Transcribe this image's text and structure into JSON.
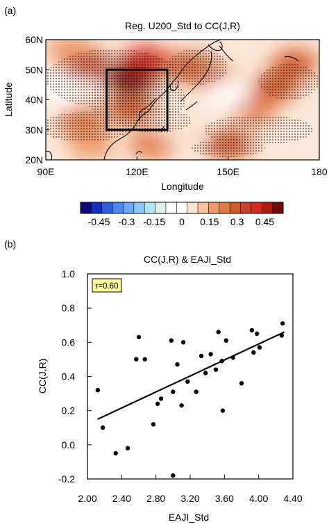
{
  "chart_data": [
    {
      "type": "heatmap",
      "panel_label": "(a)",
      "title": "Reg. U200_Std to CC(J,R)",
      "xlabel": "Longitude",
      "ylabel": "Latitude",
      "x_ticks": [
        "90E",
        "120E",
        "150E",
        "180"
      ],
      "x_tick_values": [
        90,
        120,
        150,
        180
      ],
      "y_ticks": [
        "20N",
        "30N",
        "40N",
        "50N",
        "60N"
      ],
      "y_tick_values": [
        20,
        30,
        40,
        50,
        60
      ],
      "xlim": [
        90,
        180
      ],
      "ylim": [
        20,
        60
      ],
      "box": {
        "lon": [
          110,
          130
        ],
        "lat": [
          30,
          50
        ]
      },
      "colorbar": {
        "tick_labels": [
          "-0.45",
          "-0.3",
          "-0.15",
          "0",
          "0.15",
          "0.3",
          "0.45"
        ],
        "tick_values": [
          -0.45,
          -0.3,
          -0.15,
          0,
          0.15,
          0.3,
          0.45
        ],
        "range": [
          -0.55,
          0.55
        ],
        "colors": [
          "#0a0a7a",
          "#1030c0",
          "#2f5fe0",
          "#4a86f0",
          "#6ea8f5",
          "#8ccaf5",
          "#b4e4f0",
          "#dff2ea",
          "#ffffff",
          "#ffffff",
          "#fbe3cf",
          "#f7c3a0",
          "#ef9a6a",
          "#e27a46",
          "#d45a2c",
          "#c8402a",
          "#d62a22",
          "#b01812",
          "#6e0a0a"
        ]
      },
      "features": [
        {
          "lon": 118,
          "lat": 47,
          "value": 0.5
        },
        {
          "lon": 123,
          "lat": 53,
          "value": 0.4
        },
        {
          "lon": 103,
          "lat": 52,
          "value": 0.32
        },
        {
          "lon": 137,
          "lat": 51,
          "value": 0.3
        },
        {
          "lon": 118,
          "lat": 37,
          "value": 0.28
        },
        {
          "lon": 145,
          "lat": 47,
          "value": 0.22
        },
        {
          "lon": 165,
          "lat": 44,
          "value": 0.3
        },
        {
          "lon": 158,
          "lat": 37,
          "value": 0.25
        },
        {
          "lon": 172,
          "lat": 52,
          "value": 0.28
        },
        {
          "lon": 150,
          "lat": 25,
          "value": 0.28
        },
        {
          "lon": 125,
          "lat": 25,
          "value": 0.25
        },
        {
          "lon": 102,
          "lat": 33,
          "value": 0.25
        },
        {
          "lon": 105,
          "lat": 25,
          "value": 0.2
        },
        {
          "lon": 98,
          "lat": 57,
          "value": 0.15
        },
        {
          "lon": 150,
          "lat": 42,
          "value": -0.08
        },
        {
          "lon": 95,
          "lat": 43,
          "value": -0.05
        },
        {
          "lon": 135,
          "lat": 30,
          "value": 0.05
        }
      ]
    },
    {
      "type": "scatter",
      "panel_label": "(b)",
      "title": "CC(J,R) & EAJI_Std",
      "xlabel": "EAJI_Std",
      "ylabel": "CC(J,R)",
      "xlim": [
        2.0,
        4.4
      ],
      "ylim": [
        -0.2,
        1.0
      ],
      "x_ticks": [
        "2.00",
        "2.40",
        "2.80",
        "3.20",
        "3.60",
        "4.00",
        "4.40"
      ],
      "x_tick_values": [
        2.0,
        2.4,
        2.8,
        3.2,
        3.6,
        4.0,
        4.4
      ],
      "y_ticks": [
        "-0.2",
        "0.0",
        "0.2",
        "0.4",
        "0.6",
        "0.8",
        "1.0"
      ],
      "y_tick_values": [
        -0.2,
        0.0,
        0.2,
        0.4,
        0.6,
        0.8,
        1.0
      ],
      "annotation": "r=0.60",
      "points": [
        [
          2.12,
          0.32
        ],
        [
          2.18,
          0.1
        ],
        [
          2.33,
          -0.05
        ],
        [
          2.47,
          -0.02
        ],
        [
          2.57,
          0.5
        ],
        [
          2.6,
          0.63
        ],
        [
          2.67,
          0.5
        ],
        [
          2.77,
          0.12
        ],
        [
          2.82,
          0.24
        ],
        [
          2.86,
          0.27
        ],
        [
          2.98,
          0.61
        ],
        [
          3.0,
          0.31
        ],
        [
          3.05,
          0.47
        ],
        [
          3.1,
          0.23
        ],
        [
          3.12,
          0.6
        ],
        [
          3.17,
          0.37
        ],
        [
          3.0,
          -0.18
        ],
        [
          3.27,
          0.31
        ],
        [
          3.33,
          0.52
        ],
        [
          3.38,
          0.42
        ],
        [
          3.44,
          0.53
        ],
        [
          3.5,
          0.44
        ],
        [
          3.53,
          0.66
        ],
        [
          3.57,
          0.49
        ],
        [
          3.58,
          0.2
        ],
        [
          3.62,
          0.61
        ],
        [
          3.7,
          0.51
        ],
        [
          3.8,
          0.36
        ],
        [
          3.92,
          0.67
        ],
        [
          3.94,
          0.54
        ],
        [
          3.98,
          0.65
        ],
        [
          4.01,
          0.57
        ],
        [
          4.27,
          0.64
        ],
        [
          4.28,
          0.71
        ]
      ],
      "fit_line": [
        [
          2.12,
          0.15
        ],
        [
          4.3,
          0.66
        ]
      ]
    }
  ]
}
